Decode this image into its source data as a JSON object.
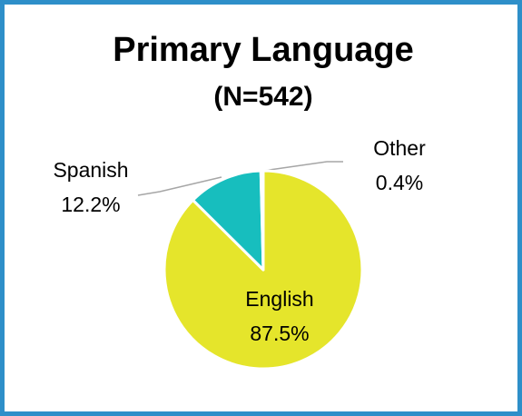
{
  "chart_data": {
    "type": "pie",
    "title": "Primary Language",
    "subtitle": "(N=542)",
    "categories": [
      "English",
      "Spanish",
      "Other"
    ],
    "values": [
      87.5,
      12.2,
      0.4
    ],
    "value_labels": [
      "87.5%",
      "12.2%",
      "0.4%"
    ],
    "colors": [
      "#e5e52b",
      "#17bebe",
      "#a6a6a6"
    ]
  }
}
